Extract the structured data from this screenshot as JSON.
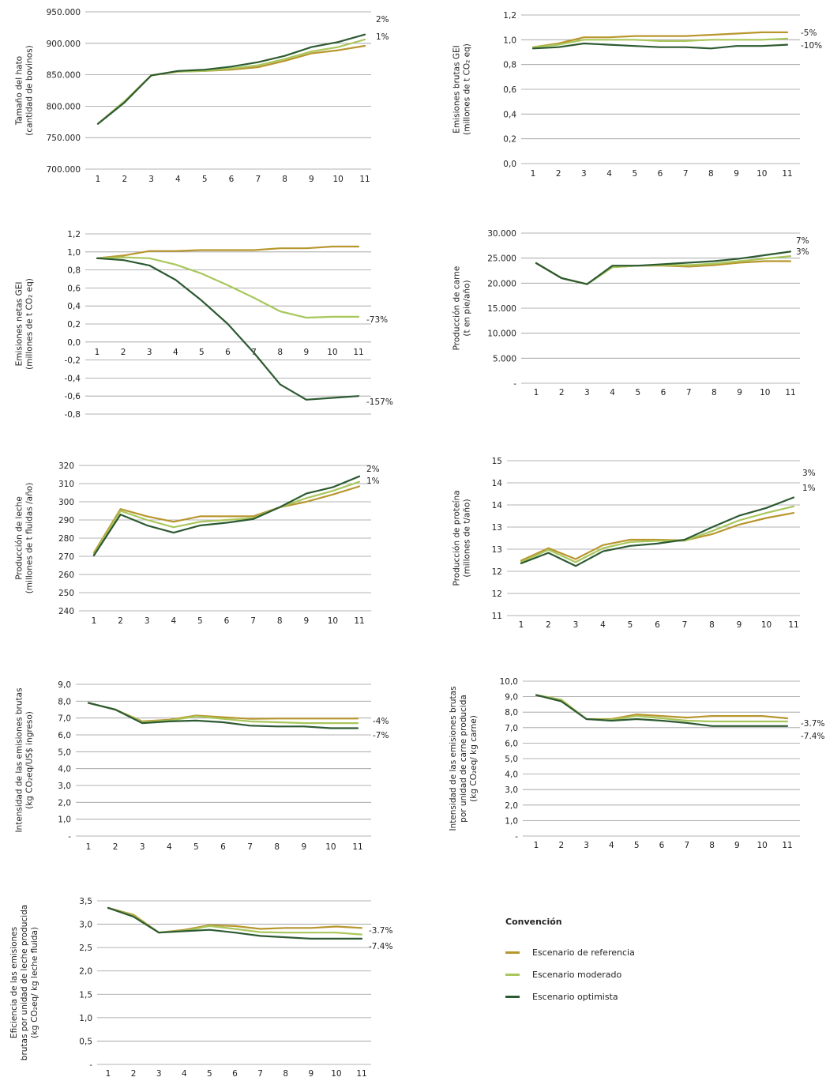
{
  "colors": {
    "referencia": "#b8962e",
    "moderado": "#a9c75b",
    "optimista": "#2d5a32"
  },
  "legend": {
    "title": "Convención",
    "items": [
      {
        "key": "referencia",
        "label": "Escenario de referencia"
      },
      {
        "key": "moderado",
        "label": "Escenario moderado"
      },
      {
        "key": "optimista",
        "label": "Escenario optimista"
      }
    ]
  },
  "chart_data": [
    {
      "type": "line",
      "ylabel": [
        "Tamaño del hato",
        "(cantidad de bovinos)"
      ],
      "x": [
        1,
        2,
        3,
        4,
        5,
        6,
        7,
        8,
        9,
        10,
        11
      ],
      "yticks": [
        "700.000",
        "750.000",
        "800.000",
        "850.000",
        "900.000",
        "950.000"
      ],
      "ylim": [
        700000,
        950000
      ],
      "series": [
        {
          "key": "referencia",
          "values": [
            772000,
            808000,
            849000,
            855000,
            856000,
            858000,
            862000,
            872000,
            884000,
            889000,
            896000
          ]
        },
        {
          "key": "moderado",
          "values": [
            772000,
            808000,
            849000,
            855000,
            856000,
            860000,
            865000,
            875000,
            887000,
            894000,
            906000
          ]
        },
        {
          "key": "optimista",
          "values": [
            772000,
            806000,
            849000,
            856000,
            858000,
            863000,
            870000,
            880000,
            894000,
            902000,
            914000
          ]
        }
      ],
      "end_labels": [
        "2%",
        "1%"
      ]
    },
    {
      "type": "line",
      "ylabel": [
        "Emisiones brutas GEI",
        "(millones de t CO₂ eq)"
      ],
      "x": [
        1,
        2,
        3,
        4,
        5,
        6,
        7,
        8,
        9,
        10,
        11
      ],
      "yticks": [
        "0,0",
        "0,2",
        "0,4",
        "0,6",
        "0,8",
        "1,0",
        "1,2"
      ],
      "ylim": [
        0,
        1.2
      ],
      "series": [
        {
          "key": "referencia",
          "values": [
            0.94,
            0.97,
            1.02,
            1.02,
            1.03,
            1.03,
            1.03,
            1.04,
            1.05,
            1.06,
            1.06
          ]
        },
        {
          "key": "moderado",
          "values": [
            0.94,
            0.96,
            1.0,
            1.0,
            1.0,
            0.99,
            0.99,
            1.0,
            1.0,
            1.0,
            1.01
          ]
        },
        {
          "key": "optimista",
          "values": [
            0.93,
            0.94,
            0.97,
            0.96,
            0.95,
            0.94,
            0.94,
            0.93,
            0.95,
            0.95,
            0.96
          ]
        }
      ],
      "end_labels": [
        "-5%",
        "-10%"
      ]
    },
    {
      "type": "line",
      "ylabel": [
        "Emisiones netas GEI",
        "(millones de t CO₂ eq)"
      ],
      "x": [
        1,
        2,
        3,
        4,
        5,
        6,
        7,
        8,
        9,
        10,
        11
      ],
      "yticks": [
        "-0,8",
        "-0,6",
        "-0,4",
        "-0,2",
        "0,0",
        "0,2",
        "0,4",
        "0,6",
        "0,8",
        "1,0",
        "1,2"
      ],
      "ylim": [
        -0.8,
        1.2
      ],
      "series": [
        {
          "key": "referencia",
          "values": [
            0.93,
            0.96,
            1.01,
            1.01,
            1.02,
            1.02,
            1.02,
            1.04,
            1.04,
            1.06,
            1.06
          ]
        },
        {
          "key": "moderado",
          "values": [
            0.93,
            0.94,
            0.93,
            0.86,
            0.76,
            0.63,
            0.49,
            0.34,
            0.27,
            0.28,
            0.28
          ]
        },
        {
          "key": "optimista",
          "values": [
            0.93,
            0.91,
            0.85,
            0.69,
            0.46,
            0.2,
            -0.12,
            -0.47,
            -0.64,
            -0.62,
            -0.6
          ]
        }
      ],
      "end_labels": [
        "-73%",
        "-157%"
      ]
    },
    {
      "type": "line",
      "ylabel": [
        "Producción de carne",
        "(t en pie/año)"
      ],
      "x": [
        1,
        2,
        3,
        4,
        5,
        6,
        7,
        8,
        9,
        10,
        11
      ],
      "yticks": [
        "-",
        "5.000",
        "10.000",
        "15.000",
        "20.000",
        "25.000",
        "30.000"
      ],
      "ylim": [
        0,
        30000
      ],
      "series": [
        {
          "key": "referencia",
          "values": [
            24000,
            21000,
            19800,
            23200,
            23500,
            23500,
            23300,
            23600,
            24100,
            24400,
            24400
          ]
        },
        {
          "key": "moderado",
          "values": [
            24000,
            21000,
            19800,
            23200,
            23500,
            23600,
            23600,
            23900,
            24400,
            24900,
            25400
          ]
        },
        {
          "key": "optimista",
          "values": [
            24000,
            21000,
            19800,
            23500,
            23500,
            23800,
            24100,
            24400,
            24900,
            25600,
            26300
          ]
        }
      ],
      "end_labels": [
        "7%",
        "3%"
      ]
    },
    {
      "type": "line",
      "ylabel": [
        "Producción de leche",
        "(millones de t fluidas /año)"
      ],
      "x": [
        1,
        2,
        3,
        4,
        5,
        6,
        7,
        8,
        9,
        10,
        11
      ],
      "yticks": [
        "240",
        "250",
        "260",
        "270",
        "280",
        "290",
        "300",
        "310",
        "320"
      ],
      "ylim": [
        240,
        320
      ],
      "series": [
        {
          "key": "referencia",
          "values": [
            272,
            296,
            292,
            289,
            292,
            292,
            292,
            297,
            300,
            304,
            308.5
          ]
        },
        {
          "key": "moderado",
          "values": [
            271,
            295,
            290,
            286,
            289,
            290,
            291,
            297,
            302,
            306,
            311
          ]
        },
        {
          "key": "optimista",
          "values": [
            270.5,
            293,
            287,
            283,
            287,
            288.5,
            290.5,
            297,
            304.5,
            308,
            314
          ]
        }
      ],
      "end_labels": [
        "2%",
        "1%"
      ]
    },
    {
      "type": "line",
      "ylabel": [
        "Producción de proteína",
        "(millones de  t/año)"
      ],
      "x": [
        1,
        2,
        3,
        4,
        5,
        6,
        7,
        8,
        9,
        10,
        11
      ],
      "yticks": [
        "11",
        "12",
        "12",
        "13",
        "13",
        "14",
        "14",
        "15"
      ],
      "ylim": [
        11,
        15
      ],
      "series": [
        {
          "key": "referencia",
          "values": [
            12.42,
            12.74,
            12.46,
            12.82,
            12.96,
            12.96,
            12.94,
            13.1,
            13.35,
            13.52,
            13.65
          ]
        },
        {
          "key": "moderado",
          "values": [
            12.38,
            12.7,
            12.38,
            12.74,
            12.9,
            12.93,
            12.93,
            13.18,
            13.46,
            13.65,
            13.82
          ]
        },
        {
          "key": "optimista",
          "values": [
            12.35,
            12.62,
            12.28,
            12.66,
            12.8,
            12.86,
            12.96,
            13.28,
            13.58,
            13.78,
            14.05
          ]
        }
      ],
      "end_labels": [
        "3%",
        "1%"
      ]
    },
    {
      "type": "line",
      "ylabel": [
        "Intensidad de las emisiones brutas",
        "(kg CO₂eq/US$ ingreso)"
      ],
      "x": [
        1,
        2,
        3,
        4,
        5,
        6,
        7,
        8,
        9,
        10,
        11
      ],
      "yticks": [
        "-",
        "1,0",
        "2,0",
        "3,0",
        "4,0",
        "5,0",
        "6,0",
        "7,0",
        "8,0",
        "9,0"
      ],
      "ylim": [
        0,
        9
      ],
      "series": [
        {
          "key": "referencia",
          "values": [
            7.9,
            7.5,
            6.8,
            6.9,
            7.15,
            7.05,
            6.95,
            6.97,
            6.97,
            6.97,
            6.97
          ]
        },
        {
          "key": "moderado",
          "values": [
            7.9,
            7.5,
            6.75,
            6.85,
            7.1,
            6.95,
            6.8,
            6.75,
            6.7,
            6.7,
            6.7
          ]
        },
        {
          "key": "optimista",
          "values": [
            7.9,
            7.5,
            6.7,
            6.8,
            6.85,
            6.75,
            6.55,
            6.5,
            6.5,
            6.4,
            6.4
          ]
        }
      ],
      "end_labels": [
        "-4%",
        "-7%"
      ]
    },
    {
      "type": "line",
      "ylabel": [
        "Intensidad de las emisiones brutas",
        "por unidad de carne producida",
        "(kg CO₂eq/ kg carne)"
      ],
      "x": [
        1,
        2,
        3,
        4,
        5,
        6,
        7,
        8,
        9,
        10,
        11
      ],
      "yticks": [
        "-",
        "1,0",
        "2,0",
        "3,0",
        "4,0",
        "5,0",
        "6,0",
        "7,0",
        "8,0",
        "9,0",
        "10,0"
      ],
      "ylim": [
        0,
        10
      ],
      "series": [
        {
          "key": "referencia",
          "values": [
            9.1,
            8.8,
            7.55,
            7.55,
            7.85,
            7.75,
            7.65,
            7.75,
            7.75,
            7.75,
            7.6
          ]
        },
        {
          "key": "moderado",
          "values": [
            9.1,
            8.8,
            7.55,
            7.5,
            7.75,
            7.6,
            7.45,
            7.4,
            7.4,
            7.4,
            7.4
          ]
        },
        {
          "key": "optimista",
          "values": [
            9.1,
            8.7,
            7.55,
            7.45,
            7.55,
            7.45,
            7.3,
            7.1,
            7.1,
            7.1,
            7.1
          ]
        }
      ],
      "end_labels": [
        "-3.7%",
        "-7.4%"
      ]
    },
    {
      "type": "line",
      "ylabel": [
        "Eficiencia de las emisiones",
        "brutas por unidad de leche producida",
        "(kg CO₂eq/ kg leche fluida)"
      ],
      "x": [
        1,
        2,
        3,
        4,
        5,
        6,
        7,
        8,
        9,
        10,
        11
      ],
      "yticks": [
        "-",
        "0,5",
        "1,0",
        "1,5",
        "2,0",
        "2,5",
        "3,0",
        "3,5"
      ],
      "ylim": [
        0,
        3.5
      ],
      "series": [
        {
          "key": "referencia",
          "values": [
            3.35,
            3.2,
            2.82,
            2.88,
            2.98,
            2.96,
            2.9,
            2.92,
            2.92,
            2.95,
            2.92
          ]
        },
        {
          "key": "moderado",
          "values": [
            3.35,
            3.18,
            2.82,
            2.86,
            2.96,
            2.9,
            2.83,
            2.82,
            2.82,
            2.82,
            2.78
          ]
        },
        {
          "key": "optimista",
          "values": [
            3.35,
            3.16,
            2.82,
            2.85,
            2.88,
            2.82,
            2.75,
            2.72,
            2.69,
            2.69,
            2.69
          ]
        }
      ],
      "end_labels": [
        "-3.7%",
        "-7.4%"
      ]
    }
  ]
}
